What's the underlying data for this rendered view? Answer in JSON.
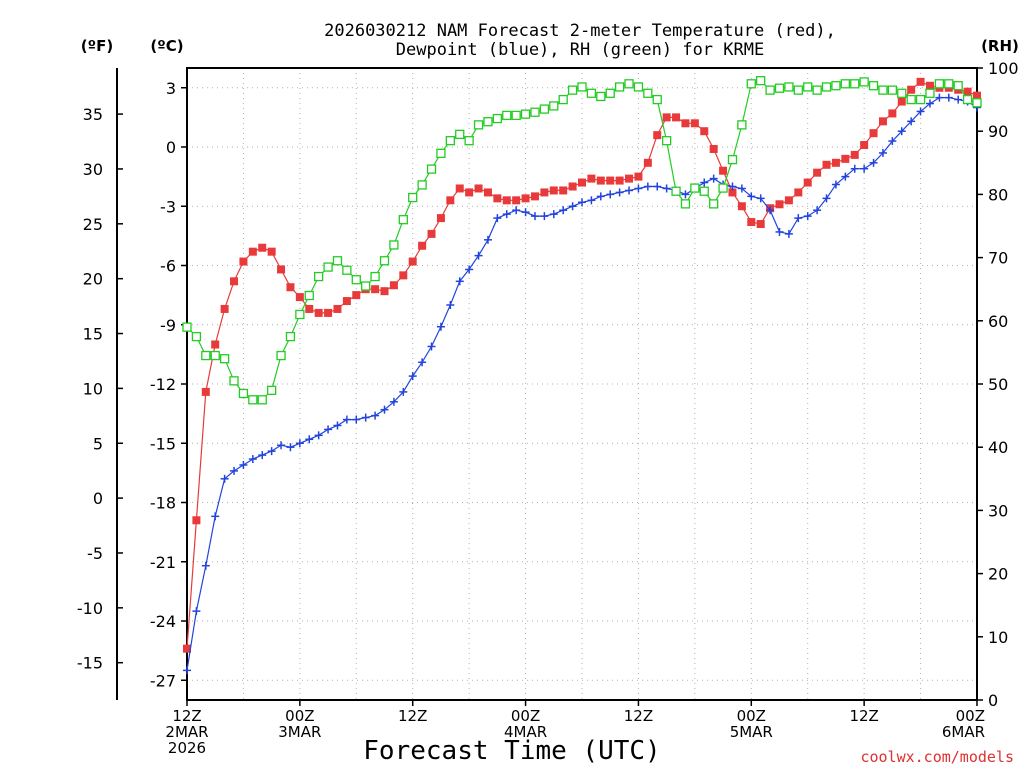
{
  "chart_data": {
    "type": "line",
    "title_line1": "2026030212 NAM Forecast 2-meter Temperature (red),",
    "title_line2": "Dewpoint (blue), RH (green) for KRME",
    "xlabel": "Forecast Time (UTC)",
    "watermark": "coolwx.com/models",
    "unit_labels": {
      "fahrenheit": "(ºF)",
      "celsius": "(ºC)",
      "rh": "(RH)"
    },
    "x_hours_range": [
      0,
      84
    ],
    "x_ticks": [
      {
        "hour": 0,
        "lines": [
          "12Z",
          "2MAR",
          "2026"
        ]
      },
      {
        "hour": 12,
        "lines": [
          "00Z",
          "3MAR"
        ]
      },
      {
        "hour": 24,
        "lines": [
          "12Z"
        ]
      },
      {
        "hour": 36,
        "lines": [
          "00Z",
          "4MAR"
        ]
      },
      {
        "hour": 48,
        "lines": [
          "12Z"
        ]
      },
      {
        "hour": 60,
        "lines": [
          "00Z",
          "5MAR"
        ]
      },
      {
        "hour": 72,
        "lines": [
          "12Z"
        ]
      },
      {
        "hour": 84,
        "lines": [
          "00Z",
          "6MAR"
        ]
      }
    ],
    "celsius_axis": {
      "range": [
        -28,
        4
      ],
      "ticks": [
        3,
        0,
        -3,
        -6,
        -9,
        -12,
        -15,
        -18,
        -21,
        -24,
        -27
      ]
    },
    "fahrenheit_axis": {
      "ticks": [
        35,
        30,
        25,
        20,
        15,
        10,
        5,
        0,
        -5,
        -10,
        -15
      ]
    },
    "rh_axis": {
      "range": [
        0,
        100
      ],
      "ticks": [
        100,
        90,
        80,
        70,
        60,
        50,
        40,
        30,
        20,
        10,
        0
      ]
    },
    "series": [
      {
        "name": "Temperature",
        "unit": "C",
        "color": "#e83a3a",
        "marker": "filled-square",
        "hours": [
          0,
          1,
          2,
          3,
          4,
          5,
          6,
          7,
          8,
          9,
          10,
          11,
          12,
          13,
          14,
          15,
          16,
          17,
          18,
          19,
          20,
          21,
          22,
          23,
          24,
          25,
          26,
          27,
          28,
          29,
          30,
          31,
          32,
          33,
          34,
          35,
          36,
          37,
          38,
          39,
          40,
          41,
          42,
          43,
          44,
          45,
          46,
          47,
          48,
          49,
          50,
          51,
          52,
          53,
          54,
          55,
          56,
          57,
          58,
          59,
          60,
          61,
          62,
          63,
          64,
          65,
          66,
          67,
          68,
          69,
          70,
          71,
          72,
          73,
          74,
          75,
          76,
          77,
          78,
          79,
          80,
          81,
          82,
          83,
          84
        ],
        "values": [
          -25.4,
          -18.9,
          -12.4,
          -10.0,
          -8.2,
          -6.8,
          -5.8,
          -5.3,
          -5.1,
          -5.3,
          -6.2,
          -7.1,
          -7.6,
          -8.2,
          -8.4,
          -8.4,
          -8.2,
          -7.8,
          -7.5,
          -7.2,
          -7.2,
          -7.3,
          -7.0,
          -6.5,
          -5.8,
          -5.0,
          -4.4,
          -3.6,
          -2.7,
          -2.1,
          -2.3,
          -2.1,
          -2.3,
          -2.6,
          -2.7,
          -2.7,
          -2.6,
          -2.5,
          -2.3,
          -2.2,
          -2.2,
          -2.0,
          -1.8,
          -1.6,
          -1.7,
          -1.7,
          -1.7,
          -1.6,
          -1.5,
          -0.8,
          0.6,
          1.5,
          1.5,
          1.2,
          1.2,
          0.8,
          -0.1,
          -1.2,
          -2.3,
          -3.0,
          -3.8,
          -3.9,
          -3.1,
          -2.9,
          -2.7,
          -2.3,
          -1.8,
          -1.3,
          -0.9,
          -0.8,
          -0.6,
          -0.4,
          0.1,
          0.7,
          1.3,
          1.7,
          2.3,
          2.9,
          3.3,
          3.1,
          3.0,
          3.0,
          2.9,
          2.8,
          2.6
        ]
      },
      {
        "name": "Dewpoint",
        "unit": "C",
        "color": "#2244dd",
        "marker": "plus",
        "hours": [
          0,
          1,
          2,
          3,
          4,
          5,
          6,
          7,
          8,
          9,
          10,
          11,
          12,
          13,
          14,
          15,
          16,
          17,
          18,
          19,
          20,
          21,
          22,
          23,
          24,
          25,
          26,
          27,
          28,
          29,
          30,
          31,
          32,
          33,
          34,
          35,
          36,
          37,
          38,
          39,
          40,
          41,
          42,
          43,
          44,
          45,
          46,
          47,
          48,
          49,
          50,
          51,
          52,
          53,
          54,
          55,
          56,
          57,
          58,
          59,
          60,
          61,
          62,
          63,
          64,
          65,
          66,
          67,
          68,
          69,
          70,
          71,
          72,
          73,
          74,
          75,
          76,
          77,
          78,
          79,
          80,
          81,
          82,
          83,
          84
        ],
        "values": [
          -26.5,
          -23.5,
          -21.2,
          -18.7,
          -16.8,
          -16.4,
          -16.1,
          -15.8,
          -15.6,
          -15.4,
          -15.1,
          -15.2,
          -15.0,
          -14.8,
          -14.6,
          -14.3,
          -14.1,
          -13.8,
          -13.8,
          -13.7,
          -13.6,
          -13.3,
          -12.9,
          -12.4,
          -11.6,
          -10.9,
          -10.1,
          -9.1,
          -8.0,
          -6.8,
          -6.2,
          -5.5,
          -4.7,
          -3.6,
          -3.4,
          -3.2,
          -3.3,
          -3.5,
          -3.5,
          -3.4,
          -3.2,
          -3.0,
          -2.8,
          -2.7,
          -2.5,
          -2.4,
          -2.3,
          -2.2,
          -2.1,
          -2.0,
          -2.0,
          -2.1,
          -2.2,
          -2.4,
          -2.1,
          -1.8,
          -1.6,
          -1.9,
          -2.0,
          -2.1,
          -2.5,
          -2.6,
          -3.2,
          -4.3,
          -4.4,
          -3.6,
          -3.5,
          -3.2,
          -2.6,
          -1.9,
          -1.5,
          -1.1,
          -1.1,
          -0.8,
          -0.3,
          0.3,
          0.8,
          1.3,
          1.8,
          2.2,
          2.5,
          2.5,
          2.4,
          2.3,
          2.0
        ]
      },
      {
        "name": "Relative Humidity",
        "unit": "%",
        "color": "#22cc22",
        "marker": "open-square",
        "hours": [
          0,
          1,
          2,
          3,
          4,
          5,
          6,
          7,
          8,
          9,
          10,
          11,
          12,
          13,
          14,
          15,
          16,
          17,
          18,
          19,
          20,
          21,
          22,
          23,
          24,
          25,
          26,
          27,
          28,
          29,
          30,
          31,
          32,
          33,
          34,
          35,
          36,
          37,
          38,
          39,
          40,
          41,
          42,
          43,
          44,
          45,
          46,
          47,
          48,
          49,
          50,
          51,
          52,
          53,
          54,
          55,
          56,
          57,
          58,
          59,
          60,
          61,
          62,
          63,
          64,
          65,
          66,
          67,
          68,
          69,
          70,
          71,
          72,
          73,
          74,
          75,
          76,
          77,
          78,
          79,
          80,
          81,
          82,
          83,
          84
        ],
        "values": [
          59,
          57.5,
          54.5,
          54.5,
          54,
          50.5,
          48.5,
          47.5,
          47.5,
          49,
          54.5,
          57.5,
          61,
          64,
          67,
          68.5,
          69.5,
          68,
          66.5,
          65.5,
          67,
          69.5,
          72,
          76,
          79.5,
          81.5,
          84,
          86.5,
          88.5,
          89.5,
          88.5,
          91,
          91.5,
          92,
          92.5,
          92.5,
          92.7,
          93,
          93.5,
          94,
          95,
          96.5,
          97,
          96,
          95.5,
          96,
          97,
          97.5,
          97,
          96,
          95,
          88.5,
          80.5,
          78.5,
          81,
          80.5,
          78.5,
          81,
          85.5,
          91,
          97.5,
          98,
          96.5,
          96.8,
          97,
          96.5,
          97,
          96.5,
          97,
          97.2,
          97.5,
          97.5,
          97.8,
          97.2,
          96.5,
          96.5,
          96,
          95,
          95,
          96,
          97.5,
          97.5,
          97.2,
          95,
          94.5
        ]
      }
    ]
  }
}
